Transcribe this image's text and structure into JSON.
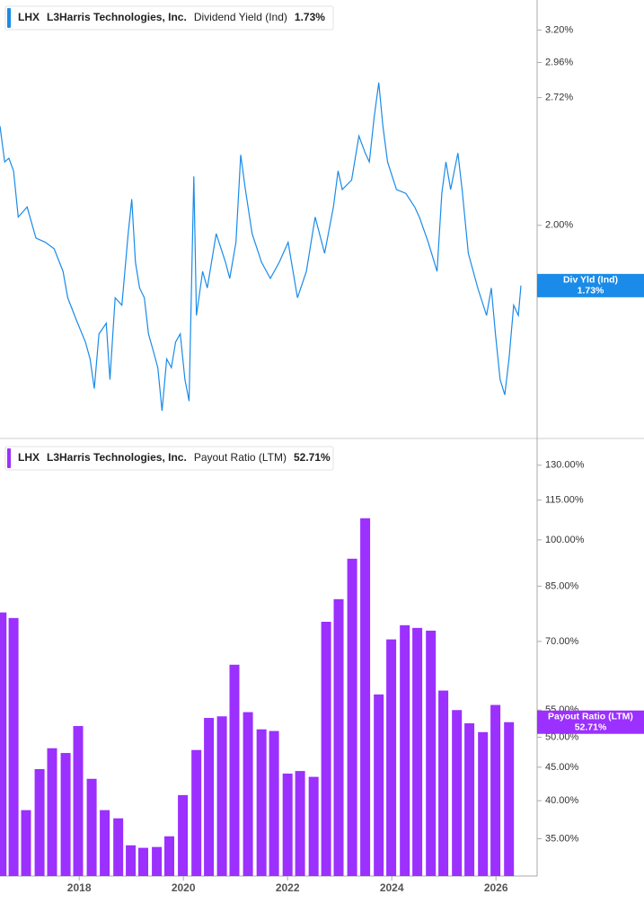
{
  "chart_data": [
    {
      "type": "line",
      "ticker": "LHX",
      "company": "L3Harris Technologies, Inc.",
      "metric": "Dividend Yield (Ind)",
      "current_label": "1.73%",
      "badge_name": "Div Yld (Ind)",
      "color": "#1a8be8",
      "log_scale": true,
      "axis_side": "right",
      "xlim": [
        2016.48,
        2026.79
      ],
      "ylim": [
        1.2,
        3.44
      ],
      "yticks": [
        {
          "value": 3.2,
          "label": "3.20%"
        },
        {
          "value": 2.96,
          "label": "2.96%"
        },
        {
          "value": 2.72,
          "label": "2.72%"
        },
        {
          "value": 2.0,
          "label": "2.00%"
        }
      ],
      "x": [
        2016.48,
        2016.57,
        2016.65,
        2016.74,
        2016.83,
        2017.0,
        2017.17,
        2017.35,
        2017.52,
        2017.69,
        2017.78,
        2017.95,
        2018.12,
        2018.21,
        2018.29,
        2018.38,
        2018.52,
        2018.59,
        2018.69,
        2018.82,
        2018.94,
        2019.01,
        2019.08,
        2019.16,
        2019.25,
        2019.33,
        2019.42,
        2019.51,
        2019.59,
        2019.68,
        2019.77,
        2019.85,
        2019.94,
        2020.03,
        2020.11,
        2020.2,
        2020.25,
        2020.37,
        2020.46,
        2020.63,
        2020.81,
        2020.89,
        2021.01,
        2021.1,
        2021.19,
        2021.32,
        2021.5,
        2021.67,
        2021.84,
        2022.01,
        2022.19,
        2022.36,
        2022.53,
        2022.71,
        2022.88,
        2022.97,
        2023.05,
        2023.23,
        2023.37,
        2023.49,
        2023.57,
        2023.66,
        2023.75,
        2023.83,
        2023.92,
        2024.09,
        2024.27,
        2024.44,
        2024.53,
        2024.7,
        2024.87,
        2024.96,
        2025.04,
        2025.13,
        2025.27,
        2025.35,
        2025.47,
        2025.65,
        2025.82,
        2025.91,
        2025.99,
        2026.08,
        2026.17,
        2026.25,
        2026.34,
        2026.43,
        2026.48
      ],
      "values": [
        2.54,
        2.33,
        2.35,
        2.28,
        2.04,
        2.09,
        1.94,
        1.92,
        1.89,
        1.79,
        1.68,
        1.59,
        1.51,
        1.45,
        1.35,
        1.54,
        1.58,
        1.38,
        1.68,
        1.65,
        1.96,
        2.13,
        1.83,
        1.72,
        1.68,
        1.54,
        1.48,
        1.42,
        1.28,
        1.45,
        1.42,
        1.51,
        1.54,
        1.38,
        1.31,
        2.25,
        1.61,
        1.79,
        1.72,
        1.96,
        1.83,
        1.76,
        1.92,
        2.37,
        2.18,
        1.96,
        1.83,
        1.76,
        1.83,
        1.92,
        1.68,
        1.79,
        2.04,
        1.87,
        2.09,
        2.28,
        2.18,
        2.23,
        2.48,
        2.38,
        2.33,
        2.59,
        2.82,
        2.54,
        2.33,
        2.18,
        2.16,
        2.09,
        2.04,
        1.92,
        1.79,
        2.16,
        2.33,
        2.18,
        2.38,
        2.18,
        1.87,
        1.72,
        1.61,
        1.72,
        1.54,
        1.38,
        1.33,
        1.45,
        1.65,
        1.61,
        1.73
      ]
    },
    {
      "type": "bar",
      "ticker": "LHX",
      "company": "L3Harris Technologies, Inc.",
      "metric": "Payout Ratio (LTM)",
      "current_label": "52.71%",
      "badge_name": "Payout Ratio (LTM)",
      "color": "#9b30ff",
      "log_scale": true,
      "axis_side": "right",
      "xlim": [
        2016.48,
        2026.79
      ],
      "xticks": [
        2018,
        2020,
        2022,
        2024,
        2026
      ],
      "ylim": [
        30.7,
        141.9
      ],
      "yticks": [
        {
          "value": 130,
          "label": "130.00%"
        },
        {
          "value": 115,
          "label": "115.00%"
        },
        {
          "value": 100,
          "label": "100.00%"
        },
        {
          "value": 85,
          "label": "85.00%"
        },
        {
          "value": 70,
          "label": "70.00%"
        },
        {
          "value": 55,
          "label": "55.00%"
        },
        {
          "value": 50,
          "label": "50.00%"
        },
        {
          "value": 45,
          "label": "45.00%"
        },
        {
          "value": 40,
          "label": "40.00%"
        },
        {
          "value": 35,
          "label": "35.00%"
        }
      ],
      "x": [
        2016.51,
        2016.74,
        2016.98,
        2017.24,
        2017.48,
        2017.74,
        2017.98,
        2018.24,
        2018.49,
        2018.75,
        2018.99,
        2019.23,
        2019.49,
        2019.73,
        2019.99,
        2020.25,
        2020.49,
        2020.74,
        2020.98,
        2021.24,
        2021.5,
        2021.74,
        2022.0,
        2022.24,
        2022.5,
        2022.74,
        2022.98,
        2023.24,
        2023.49,
        2023.75,
        2023.99,
        2024.25,
        2024.49,
        2024.75,
        2024.99,
        2025.25,
        2025.49,
        2025.75,
        2025.99,
        2026.25
      ],
      "values": [
        77.5,
        76.0,
        38.7,
        44.7,
        48.1,
        47.3,
        52.0,
        43.2,
        38.7,
        37.6,
        34.2,
        33.9,
        34.0,
        35.3,
        40.8,
        47.8,
        53.5,
        53.8,
        64.5,
        54.6,
        51.4,
        51.1,
        44.0,
        44.4,
        43.5,
        75.0,
        81.2,
        93.6,
        107.9,
        58.1,
        70.5,
        74.1,
        73.4,
        72.7,
        58.9,
        55.0,
        52.5,
        50.9,
        56.0,
        52.71
      ]
    }
  ]
}
